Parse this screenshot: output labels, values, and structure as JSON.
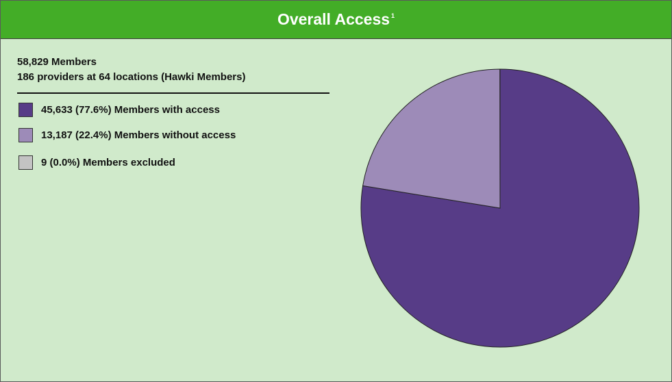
{
  "header": {
    "title": "Overall Access",
    "footnote_marker": "1"
  },
  "summary": {
    "line1": "58,829 Members",
    "line2": "186 providers at 64 locations (Hawki Members)"
  },
  "legend": {
    "items": [
      {
        "label": "45,633 (77.6%) Members with access",
        "color": "#573c87"
      },
      {
        "label": "13,187 (22.4%) Members without access",
        "color": "#9d8bb8"
      },
      {
        "label": "9 (0.0%) Members excluded",
        "color": "#c3c3c3"
      }
    ]
  },
  "colors": {
    "header_bg": "#43ad27",
    "panel_bg": "#d0eacb"
  },
  "chart_data": {
    "type": "pie",
    "title": "Overall Access",
    "slices": [
      {
        "label": "Members with access",
        "value": 45633,
        "percent": 77.6,
        "color": "#573c87"
      },
      {
        "label": "Members without access",
        "value": 13187,
        "percent": 22.4,
        "color": "#9d8bb8"
      },
      {
        "label": "Members excluded",
        "value": 9,
        "percent": 0.0,
        "color": "#c3c3c3"
      }
    ],
    "legend_position": "left"
  }
}
